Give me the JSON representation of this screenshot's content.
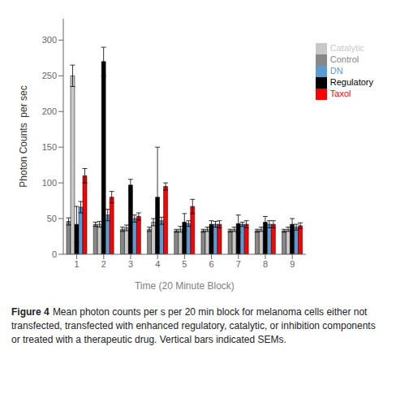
{
  "chart_data": {
    "type": "bar",
    "xlabel": "Time (20 Minute Block)",
    "ylabel": "Photon Counts  per sec",
    "categories": [
      1,
      2,
      3,
      4,
      5,
      6,
      7,
      8,
      9
    ],
    "series": [
      {
        "name": "Control",
        "color": "#888888",
        "values": [
          46,
          42,
          35,
          35,
          33,
          33,
          33,
          33,
          33
        ],
        "errors": [
          5,
          3,
          3,
          3,
          2,
          2,
          2,
          2,
          2
        ]
      },
      {
        "name": "Catalytic",
        "color": "#c8c8c8",
        "values": [
          250,
          42,
          37,
          45,
          35,
          35,
          35,
          35,
          35
        ],
        "errors": [
          15,
          4,
          4,
          5,
          4,
          3,
          3,
          3,
          3
        ]
      },
      {
        "name": "Regulatory",
        "color": "#000000",
        "values": [
          42,
          270,
          97,
          80,
          45,
          42,
          43,
          45,
          42
        ],
        "errors": [
          25,
          20,
          8,
          70,
          12,
          5,
          12,
          8,
          8
        ]
      },
      {
        "name": "DN",
        "color": "#5b9bd5",
        "values": [
          66,
          55,
          50,
          47,
          43,
          42,
          42,
          42,
          38
        ],
        "errors": [
          8,
          8,
          5,
          5,
          4,
          4,
          3,
          5,
          4
        ]
      },
      {
        "name": "Taxol",
        "color": "#ff0000",
        "values": [
          110,
          80,
          53,
          95,
          67,
          42,
          42,
          42,
          40
        ],
        "errors": [
          10,
          8,
          5,
          5,
          10,
          5,
          5,
          5,
          4
        ]
      }
    ],
    "ylim": [
      0,
      330
    ],
    "yticks": [
      0,
      50,
      100,
      150,
      200,
      250,
      300
    ],
    "grid": false,
    "legend": "right",
    "annotations": [
      "Figure 4",
      "Mean photon counts per s per 20 min block for melanoma cells either not transfected, transfected with enhanced regulatory, catalytic, or inhibition components or treated with a therapeutic drug. Vertical bars indicated SEMs."
    ]
  }
}
